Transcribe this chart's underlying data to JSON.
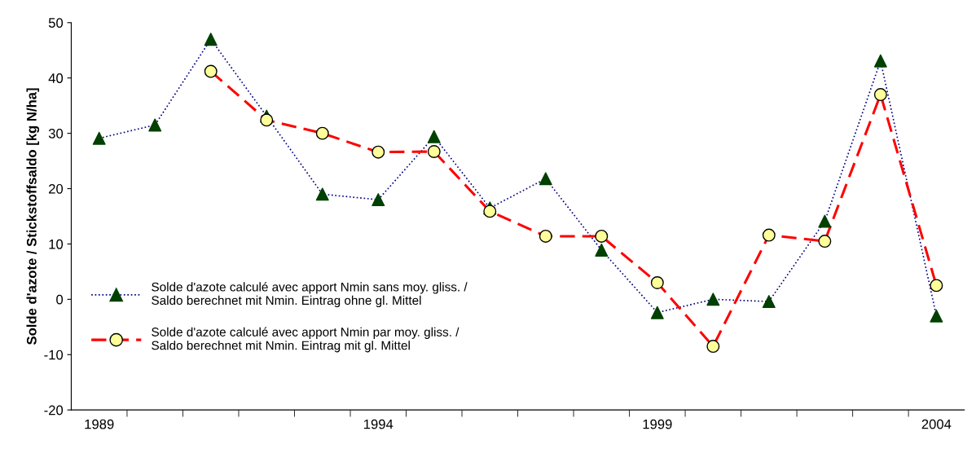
{
  "chart_data": {
    "type": "line",
    "ylabel": "Solde d'azote / Stickstoffsaldo [kg N/ha]",
    "categories": [
      "1989",
      null,
      null,
      null,
      null,
      "1994",
      null,
      null,
      null,
      null,
      "1999",
      null,
      null,
      null,
      null,
      "2004"
    ],
    "series": [
      {
        "name": "Solde d'azote calculé avec apport Nmin sans moy. gliss. /\nSaldo berechnet mit Nmin. Eintrag ohne gl. Mittel",
        "color": "#000080",
        "colors": [
          "#004000",
          "#004000",
          "#004000",
          "#004000",
          "#004000",
          "#004000",
          "#004000",
          "#004000",
          "#004000",
          "#004000",
          "#004000",
          "#004000",
          "#004000",
          "#004000",
          "#004000",
          "#004000"
        ],
        "marker": "triangle",
        "line_style": "dotted",
        "values": [
          29.1,
          31.5,
          47.0,
          33.1,
          19.0,
          18.0,
          29.4,
          16.5,
          21.8,
          8.9,
          -2.4,
          0.0,
          -0.4,
          14.1,
          43.1,
          -3.0
        ]
      },
      {
        "name": "Solde d'azote calculé avec apport Nmin par moy. gliss. /\nSaldo berechnet mit Nmin. Eintrag mit gl. Mittel",
        "color": "#ff0000",
        "colors": [
          "#ffff99",
          "#ffff99",
          "#ffff99",
          "#ffff99",
          "#ffff99",
          "#ffff99",
          "#ffff99",
          "#ffff99",
          "#ffff99",
          "#ffff99",
          "#ffff99",
          "#ffff99",
          "#ffff99",
          "#ffff99",
          "#ffff99",
          "#ffff99"
        ],
        "marker": "circle",
        "line_style": "dashed",
        "values": [
          null,
          null,
          41.2,
          32.4,
          30.0,
          26.6,
          26.7,
          15.9,
          11.4,
          11.4,
          3.0,
          -8.5,
          11.6,
          10.5,
          37.0,
          2.5
        ]
      }
    ],
    "ylim": [
      -20,
      50
    ],
    "yticks": [
      -20,
      -10,
      0,
      10,
      20,
      30,
      40,
      50
    ],
    "grid": false,
    "legend": "bottom left"
  }
}
